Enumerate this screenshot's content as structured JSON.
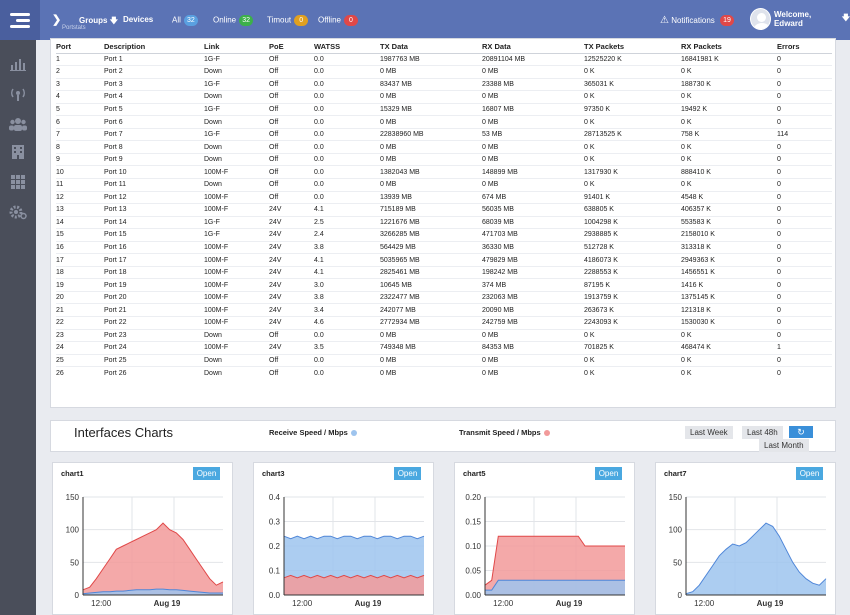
{
  "topbar": {
    "groups": "Groups",
    "devices": "Devices",
    "faint_label": "Portstats",
    "statuses": [
      {
        "label": "All",
        "count": "32",
        "color": "#5aa0e0"
      },
      {
        "label": "Online",
        "count": "32",
        "color": "#3cb04a"
      },
      {
        "label": "Timout",
        "count": "0",
        "color": "#e0a020"
      },
      {
        "label": "Offline",
        "count": "0",
        "color": "#e04848"
      }
    ],
    "notifications_label": "Notifications",
    "notifications_count": "19",
    "welcome": "Welcome, Edward"
  },
  "sidebar": {
    "icons": [
      "chart-icon",
      "wireless-icon",
      "users-icon",
      "building-icon",
      "grid-icon",
      "settings-icon"
    ]
  },
  "table": {
    "headers": [
      "Port",
      "Description",
      "Link",
      "PoE",
      "WATSS",
      "TX Data",
      "RX Data",
      "TX Packets",
      "RX Packets",
      "Errors"
    ],
    "rows": [
      [
        "1",
        "Port 1",
        "1G-F",
        "Off",
        "0.0",
        "1987763 MB",
        "20891104 MB",
        "12525220 K",
        "16841981 K",
        "0"
      ],
      [
        "2",
        "Port 2",
        "Down",
        "Off",
        "0.0",
        "0 MB",
        "0 MB",
        "0 K",
        "0 K",
        "0"
      ],
      [
        "3",
        "Port 3",
        "1G-F",
        "Off",
        "0.0",
        "83437 MB",
        "23388 MB",
        "365031 K",
        "188730 K",
        "0"
      ],
      [
        "4",
        "Port 4",
        "Down",
        "Off",
        "0.0",
        "0 MB",
        "0 MB",
        "0 K",
        "0 K",
        "0"
      ],
      [
        "5",
        "Port 5",
        "1G-F",
        "Off",
        "0.0",
        "15329 MB",
        "16807 MB",
        "97350 K",
        "19492 K",
        "0"
      ],
      [
        "6",
        "Port 6",
        "Down",
        "Off",
        "0.0",
        "0 MB",
        "0 MB",
        "0 K",
        "0 K",
        "0"
      ],
      [
        "7",
        "Port 7",
        "1G-F",
        "Off",
        "0.0",
        "22838960 MB",
        "53 MB",
        "28713525 K",
        "758 K",
        "114"
      ],
      [
        "8",
        "Port 8",
        "Down",
        "Off",
        "0.0",
        "0 MB",
        "0 MB",
        "0 K",
        "0 K",
        "0"
      ],
      [
        "9",
        "Port 9",
        "Down",
        "Off",
        "0.0",
        "0 MB",
        "0 MB",
        "0 K",
        "0 K",
        "0"
      ],
      [
        "10",
        "Port 10",
        "100M-F",
        "Off",
        "0.0",
        "1382043 MB",
        "148899 MB",
        "1317930 K",
        "888410 K",
        "0"
      ],
      [
        "11",
        "Port 11",
        "Down",
        "Off",
        "0.0",
        "0 MB",
        "0 MB",
        "0 K",
        "0 K",
        "0"
      ],
      [
        "12",
        "Port 12",
        "100M-F",
        "Off",
        "0.0",
        "13939 MB",
        "674 MB",
        "91401 K",
        "4548 K",
        "0"
      ],
      [
        "13",
        "Port 13",
        "100M-F",
        "24V",
        "4.1",
        "715189 MB",
        "56035 MB",
        "638805 K",
        "406357 K",
        "0"
      ],
      [
        "14",
        "Port 14",
        "1G-F",
        "24V",
        "2.5",
        "1221676 MB",
        "68039 MB",
        "1004298 K",
        "553583 K",
        "0"
      ],
      [
        "15",
        "Port 15",
        "1G-F",
        "24V",
        "2.4",
        "3266285 MB",
        "471703 MB",
        "2938885 K",
        "2158010 K",
        "0"
      ],
      [
        "16",
        "Port 16",
        "100M-F",
        "24V",
        "3.8",
        "564429 MB",
        "36330 MB",
        "512728 K",
        "313318 K",
        "0"
      ],
      [
        "17",
        "Port 17",
        "100M-F",
        "24V",
        "4.1",
        "5035965 MB",
        "479829 MB",
        "4186073 K",
        "2949363 K",
        "0"
      ],
      [
        "18",
        "Port 18",
        "100M-F",
        "24V",
        "4.1",
        "2825461 MB",
        "198242 MB",
        "2288553 K",
        "1456551 K",
        "0"
      ],
      [
        "19",
        "Port 19",
        "100M-F",
        "24V",
        "3.0",
        "10645 MB",
        "374 MB",
        "87195 K",
        "1416 K",
        "0"
      ],
      [
        "20",
        "Port 20",
        "100M-F",
        "24V",
        "3.8",
        "2322477 MB",
        "232063 MB",
        "1913759 K",
        "1375145 K",
        "0"
      ],
      [
        "21",
        "Port 21",
        "100M-F",
        "24V",
        "3.4",
        "242077 MB",
        "20090 MB",
        "263673 K",
        "121318 K",
        "0"
      ],
      [
        "22",
        "Port 22",
        "100M-F",
        "24V",
        "4.6",
        "2772934 MB",
        "242759 MB",
        "2243093 K",
        "1530030 K",
        "0"
      ],
      [
        "23",
        "Port 23",
        "Down",
        "Off",
        "0.0",
        "0 MB",
        "0 MB",
        "0 K",
        "0 K",
        "0"
      ],
      [
        "24",
        "Port 24",
        "100M-F",
        "24V",
        "3.5",
        "749348 MB",
        "84353 MB",
        "701825 K",
        "468474 K",
        "1"
      ],
      [
        "25",
        "Port 25",
        "Down",
        "Off",
        "0.0",
        "0 MB",
        "0 MB",
        "0 K",
        "0 K",
        "0"
      ],
      [
        "26",
        "Port 26",
        "Down",
        "Off",
        "0.0",
        "0 MB",
        "0 MB",
        "0 K",
        "0 K",
        "0"
      ]
    ]
  },
  "charts_header": {
    "title": "Interfaces Charts",
    "receive_label": "Receive Speed  / Mbps",
    "transmit_label": "Transmit Speed  / Mbps",
    "receive_color": "#9ec4ee",
    "transmit_color": "#f29a9a",
    "last_week": "Last Week",
    "last_48h": "Last 48h",
    "last_month": "Last Month"
  },
  "chart_data": [
    {
      "type": "area",
      "title": "chart1",
      "open_label": "Open",
      "y_ticks": [
        "150",
        "100",
        "50",
        "0"
      ],
      "ylim": [
        0,
        150
      ],
      "x_ticks": [
        "12:00",
        "Aug 19"
      ],
      "series": [
        {
          "name": "Transmit Speed",
          "values": [
            8,
            12,
            25,
            40,
            55,
            70,
            75,
            80,
            85,
            90,
            95,
            100,
            110,
            100,
            95,
            85,
            70,
            55,
            40,
            25,
            15,
            20
          ]
        },
        {
          "name": "Receive Speed",
          "values": [
            2,
            3,
            4,
            5,
            5,
            6,
            6,
            7,
            8,
            8,
            8,
            9,
            9,
            8,
            8,
            7,
            6,
            5,
            4,
            3,
            3,
            3
          ]
        }
      ]
    },
    {
      "type": "area",
      "title": "chart3",
      "open_label": "Open",
      "y_ticks": [
        "0.4",
        "0.3",
        "0.2",
        "0.1",
        "0.0"
      ],
      "ylim": [
        0,
        0.4
      ],
      "x_ticks": [
        "12:00",
        "Aug 19"
      ],
      "series": [
        {
          "name": "Receive Speed",
          "values": [
            0.24,
            0.23,
            0.24,
            0.23,
            0.24,
            0.23,
            0.24,
            0.24,
            0.23,
            0.24,
            0.24,
            0.23,
            0.24,
            0.24,
            0.23,
            0.24,
            0.24,
            0.23,
            0.24,
            0.24,
            0.23,
            0.24
          ]
        },
        {
          "name": "Transmit Speed",
          "values": [
            0.07,
            0.08,
            0.07,
            0.08,
            0.07,
            0.08,
            0.07,
            0.08,
            0.07,
            0.08,
            0.07,
            0.08,
            0.07,
            0.08,
            0.07,
            0.08,
            0.07,
            0.08,
            0.07,
            0.08,
            0.07,
            0.08
          ]
        }
      ]
    },
    {
      "type": "area",
      "title": "chart5",
      "open_label": "Open",
      "y_ticks": [
        "0.20",
        "0.15",
        "0.10",
        "0.05",
        "0.00"
      ],
      "ylim": [
        0,
        0.2
      ],
      "x_ticks": [
        "12:00",
        "Aug 19"
      ],
      "series": [
        {
          "name": "Transmit Speed",
          "values": [
            0.02,
            0.03,
            0.12,
            0.12,
            0.12,
            0.12,
            0.12,
            0.12,
            0.12,
            0.12,
            0.12,
            0.12,
            0.12,
            0.12,
            0.12,
            0.1,
            0.1,
            0.1,
            0.1,
            0.1,
            0.1,
            0.1
          ]
        },
        {
          "name": "Receive Speed",
          "values": [
            0.01,
            0.01,
            0.03,
            0.03,
            0.03,
            0.03,
            0.03,
            0.03,
            0.03,
            0.03,
            0.03,
            0.03,
            0.03,
            0.03,
            0.03,
            0.03,
            0.03,
            0.03,
            0.03,
            0.03,
            0.03,
            0.03
          ]
        }
      ]
    },
    {
      "type": "area",
      "title": "chart7",
      "open_label": "Open",
      "y_ticks": [
        "150",
        "100",
        "50",
        "0"
      ],
      "ylim": [
        0,
        150
      ],
      "x_ticks": [
        "12:00",
        "Aug 19"
      ],
      "series": [
        {
          "name": "Receive Speed",
          "values": [
            2,
            5,
            15,
            30,
            45,
            60,
            70,
            78,
            75,
            80,
            90,
            100,
            110,
            105,
            90,
            70,
            50,
            35,
            25,
            18,
            15,
            25
          ]
        }
      ]
    }
  ]
}
